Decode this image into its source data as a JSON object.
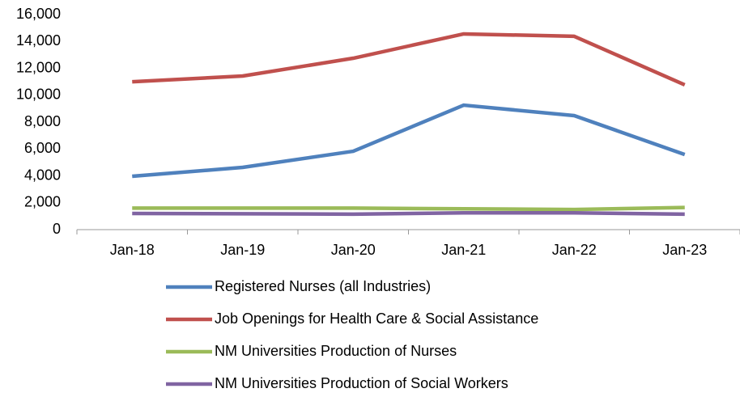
{
  "chart_data": {
    "type": "line",
    "categories": [
      "Jan-18",
      "Jan-19",
      "Jan-20",
      "Jan-21",
      "Jan-22",
      "Jan-23"
    ],
    "series": [
      {
        "name": "Registered Nurses (all Industries)",
        "color": "#4f81bd",
        "values": [
          3970,
          4630,
          5830,
          9260,
          8480,
          5590
        ]
      },
      {
        "name": "Job Openings for Health Care & Social Assistance",
        "color": "#c0504d",
        "values": [
          11000,
          11430,
          12750,
          14560,
          14380,
          10770
        ]
      },
      {
        "name": "NM Universities Production of Nurses",
        "color": "#9bbb59",
        "values": [
          1600,
          1600,
          1600,
          1550,
          1500,
          1650
        ]
      },
      {
        "name": "NM Universities Production of Social Workers",
        "color": "#8064a2",
        "values": [
          1200,
          1180,
          1150,
          1250,
          1250,
          1150
        ]
      }
    ],
    "ylim": [
      0,
      16000
    ],
    "yticks": [
      0,
      {
        "value": 2000,
        "label": "2,000"
      },
      {
        "value": 4000,
        "label": "4,000"
      },
      {
        "value": 6000,
        "label": "6,000"
      },
      {
        "value": 8000,
        "label": "8,000"
      },
      {
        "value": 10000,
        "label": "10,000"
      },
      {
        "value": 12000,
        "label": "12,000"
      },
      {
        "value": 14000,
        "label": "14,000"
      },
      {
        "value": 16000,
        "label": "16,000"
      }
    ],
    "grid": false,
    "legend": "bottom"
  }
}
